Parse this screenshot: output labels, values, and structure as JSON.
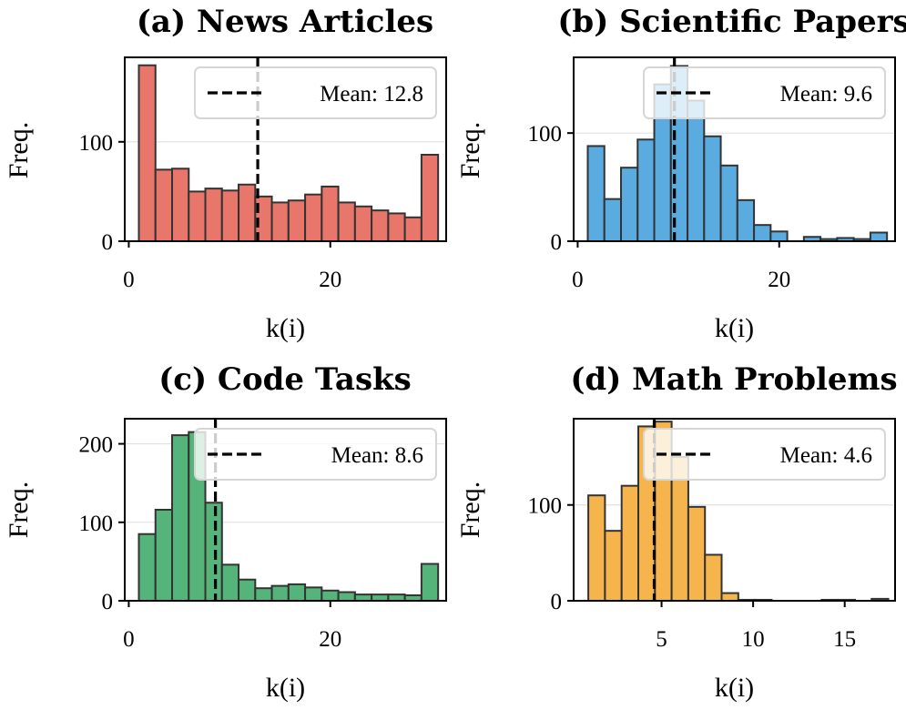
{
  "colors": {
    "news": "#e8766b",
    "science": "#5aace0",
    "code": "#55b47a",
    "math": "#f5b54c",
    "edge": "#333333",
    "mean_line": "#000000",
    "grid": "#e0e0e0"
  },
  "chart_data": [
    {
      "type": "bar",
      "id": "news",
      "title": "(a) News Articles",
      "xlabel": "k(i)",
      "ylabel": "Freq.",
      "xlim": [
        -0.4,
        31.5
      ],
      "ylim": [
        0,
        185
      ],
      "xticks": [
        0,
        20
      ],
      "xtick_labels": [
        "0",
        "20"
      ],
      "yticks": [
        0,
        100
      ],
      "ytick_labels": [
        "0",
        "100"
      ],
      "bin_start": 1,
      "bin_width": 1.65,
      "values": [
        177,
        72,
        73,
        50,
        53,
        51,
        57,
        45,
        39,
        41,
        47,
        55,
        39,
        35,
        31,
        28,
        24,
        87
      ],
      "mean": 12.8,
      "legend": "Mean: 12.8",
      "legend_position": "upper right",
      "grid": true
    },
    {
      "type": "bar",
      "id": "science",
      "title": "(b) Scientific Papers",
      "xlabel": "k(i)",
      "ylabel": "Freq.",
      "xlim": [
        -0.4,
        31.5
      ],
      "ylim": [
        0,
        170
      ],
      "xticks": [
        0,
        20
      ],
      "xtick_labels": [
        "0",
        "20"
      ],
      "yticks": [
        0,
        100
      ],
      "ytick_labels": [
        "0",
        "100"
      ],
      "bin_start": 1,
      "bin_width": 1.65,
      "values": [
        88,
        39,
        68,
        94,
        145,
        162,
        130,
        97,
        70,
        38,
        15,
        9,
        0,
        4,
        2,
        3,
        2,
        8
      ],
      "mean": 9.6,
      "legend": "Mean: 9.6",
      "legend_position": "upper right",
      "grid": true
    },
    {
      "type": "bar",
      "id": "code",
      "title": "(c) Code Tasks",
      "xlabel": "k(i)",
      "ylabel": "Freq.",
      "xlim": [
        -0.4,
        31.5
      ],
      "ylim": [
        0,
        232
      ],
      "xticks": [
        0,
        20
      ],
      "xtick_labels": [
        "0",
        "20"
      ],
      "yticks": [
        0,
        100,
        200
      ],
      "ytick_labels": [
        "0",
        "100",
        "200"
      ],
      "bin_start": 1,
      "bin_width": 1.65,
      "values": [
        85,
        116,
        211,
        215,
        125,
        46,
        27,
        16,
        19,
        21,
        17,
        13,
        11,
        8,
        8,
        8,
        7,
        47
      ],
      "mean": 8.6,
      "legend": "Mean: 8.6",
      "legend_position": "upper right",
      "grid": true
    },
    {
      "type": "bar",
      "id": "math",
      "title": "(d) Math Problems",
      "xlabel": "k(i)",
      "ylabel": "Freq.",
      "xlim": [
        0.2,
        17.75
      ],
      "ylim": [
        0,
        190
      ],
      "xticks": [
        5,
        10,
        15
      ],
      "xtick_labels": [
        "5",
        "10",
        "15"
      ],
      "yticks": [
        0,
        100
      ],
      "ytick_labels": [
        "0",
        "100"
      ],
      "bin_start": 1,
      "bin_width": 0.91,
      "values": [
        110,
        73,
        120,
        182,
        187,
        150,
        98,
        48,
        8,
        1,
        1,
        0,
        0,
        0,
        1,
        1,
        0,
        2
      ],
      "mean": 4.6,
      "legend": "Mean: 4.6",
      "legend_position": "upper right",
      "grid": true
    }
  ]
}
